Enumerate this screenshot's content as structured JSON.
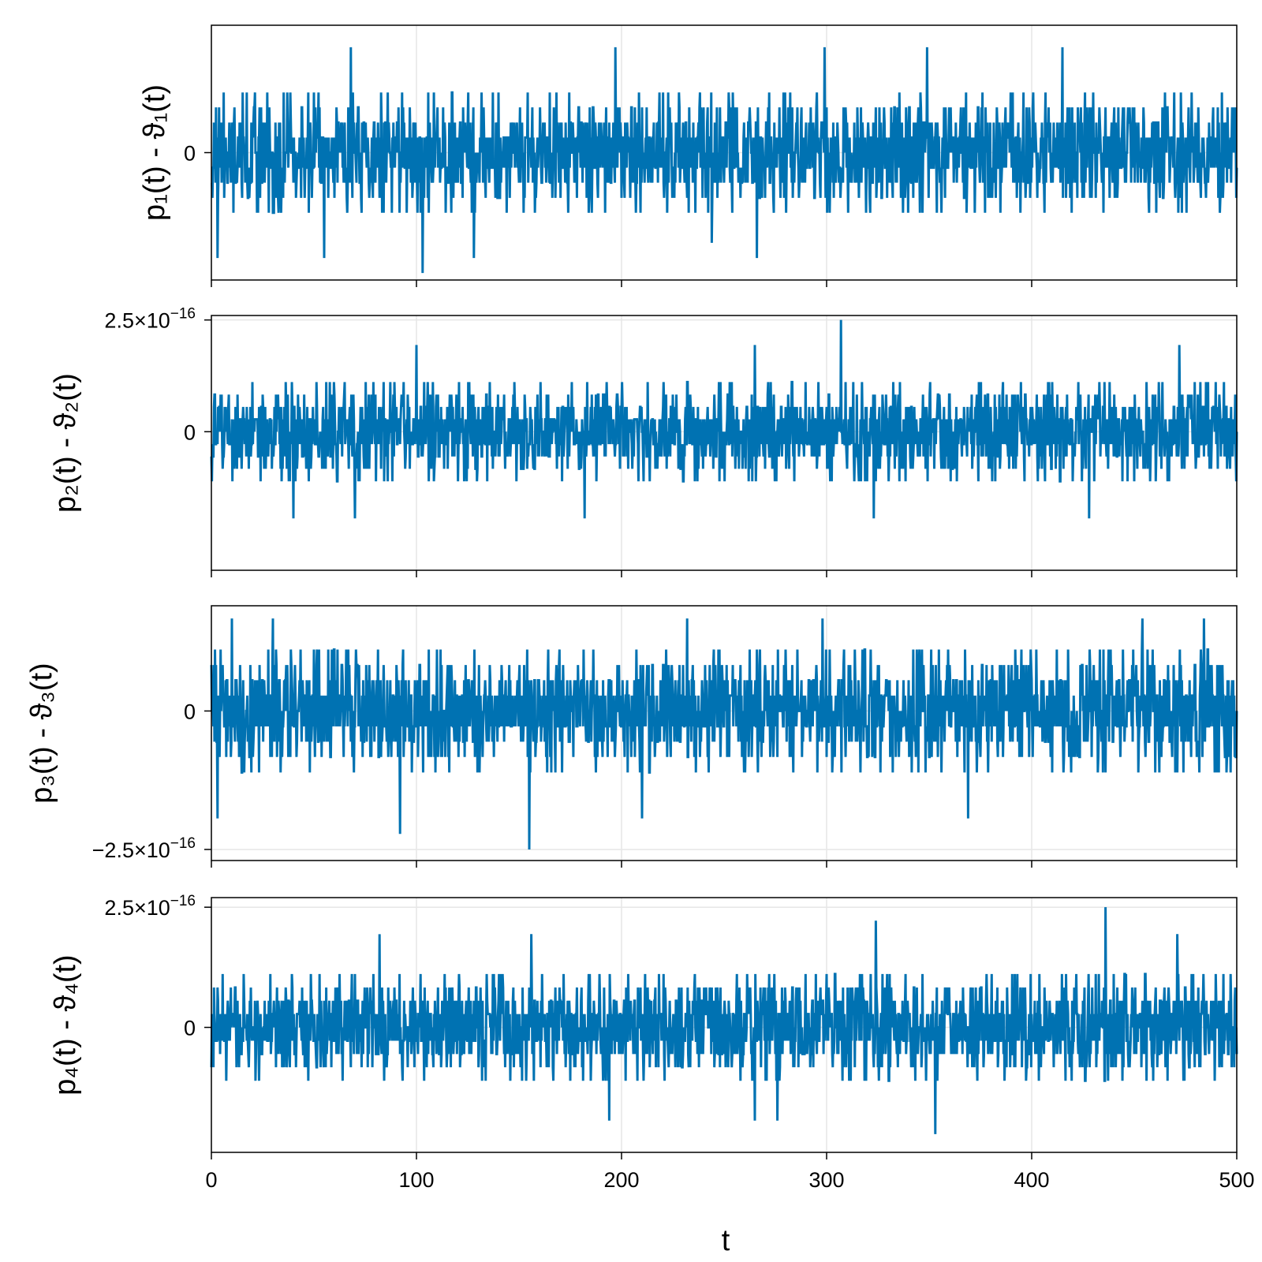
{
  "chart_data": [
    {
      "type": "line",
      "ylabel": "p₁(t) - ϑ₁(t)",
      "xlabel": "",
      "xlim": [
        0,
        500
      ],
      "ylim": [
        -4.7e-16,
        4.7e-16
      ],
      "xticks": [
        0,
        100,
        200,
        300,
        400,
        500
      ],
      "yticks": [
        {
          "value": 0,
          "label": "0"
        }
      ],
      "grid": true,
      "color": "#0072B2",
      "series": [
        {
          "x_range": [
            0,
            500
          ],
          "n_points": 2001,
          "levels": [
            -4.44e-16,
            -3.89e-16,
            -3.33e-16,
            -2.78e-16,
            -2.22e-16,
            -1.67e-16,
            -1.11e-16,
            -5.55e-17,
            0,
            5.55e-17,
            1.11e-16,
            1.67e-16,
            2.22e-16,
            2.78e-16,
            3.33e-16,
            3.89e-16
          ],
          "extremes": [
            {
              "x": 3,
              "y": -3.89e-16
            },
            {
              "x": 55,
              "y": -3.89e-16
            },
            {
              "x": 103,
              "y": -4.44e-16
            },
            {
              "x": 128,
              "y": -3.89e-16
            },
            {
              "x": 266,
              "y": -3.89e-16
            },
            {
              "x": 244,
              "y": -3.33e-16
            },
            {
              "x": 68,
              "y": 3.89e-16
            },
            {
              "x": 197,
              "y": 3.89e-16
            },
            {
              "x": 299,
              "y": 3.89e-16
            },
            {
              "x": 349,
              "y": 3.89e-16
            },
            {
              "x": 415,
              "y": 3.89e-16
            }
          ]
        }
      ]
    },
    {
      "type": "line",
      "ylabel": "p₂(t) - ϑ₂(t)",
      "xlabel": "",
      "xlim": [
        0,
        500
      ],
      "ylim": [
        -3.1e-16,
        2.6e-16
      ],
      "xticks": [
        0,
        100,
        200,
        300,
        400,
        500
      ],
      "yticks": [
        {
          "value": 2.5e-16,
          "label": "2.5×10",
          "exp": "−16"
        },
        {
          "value": 0,
          "label": "0"
        }
      ],
      "grid": true,
      "color": "#0072B2",
      "series": [
        {
          "x_range": [
            0,
            500
          ],
          "n_points": 2001,
          "levels": [
            -1.94e-16,
            -1.67e-16,
            -1.39e-16,
            -1.11e-16,
            -8.3e-17,
            -5.55e-17,
            -2.78e-17,
            0,
            2.78e-17,
            5.55e-17,
            8.3e-17,
            1.11e-16,
            1.39e-16,
            1.67e-16,
            1.94e-16,
            2.22e-16,
            2.5e-16
          ],
          "extremes": [
            {
              "x": 40,
              "y": -1.94e-16
            },
            {
              "x": 70,
              "y": -1.94e-16
            },
            {
              "x": 182,
              "y": -1.94e-16
            },
            {
              "x": 265,
              "y": -1.94e-16
            },
            {
              "x": 323,
              "y": -1.94e-16
            },
            {
              "x": 428,
              "y": -1.94e-16
            },
            {
              "x": 307,
              "y": 2.5e-16
            },
            {
              "x": 100,
              "y": 1.94e-16
            },
            {
              "x": 265,
              "y": 1.94e-16
            },
            {
              "x": 472,
              "y": 1.94e-16
            }
          ]
        }
      ]
    },
    {
      "type": "line",
      "ylabel": "p₃(t) - ϑ₃(t)",
      "xlabel": "",
      "xlim": [
        0,
        500
      ],
      "ylim": [
        -2.7e-16,
        1.9e-16
      ],
      "xticks": [
        0,
        100,
        200,
        300,
        400,
        500
      ],
      "yticks": [
        {
          "value": 0,
          "label": "0"
        },
        {
          "value": -2.5e-16,
          "label": "−2.5×10",
          "exp": "−16"
        }
      ],
      "grid": true,
      "color": "#0072B2",
      "series": [
        {
          "x_range": [
            0,
            500
          ],
          "n_points": 2001,
          "levels": [
            -2.5e-16,
            -2.22e-16,
            -1.94e-16,
            -1.67e-16,
            -1.39e-16,
            -1.11e-16,
            -8.3e-17,
            -5.55e-17,
            -2.78e-17,
            0,
            2.78e-17,
            5.55e-17,
            8.3e-17,
            1.11e-16,
            1.39e-16,
            1.67e-16
          ],
          "extremes": [
            {
              "x": 155,
              "y": -2.5e-16
            },
            {
              "x": 92,
              "y": -2.22e-16
            },
            {
              "x": 3,
              "y": -1.94e-16
            },
            {
              "x": 210,
              "y": -1.94e-16
            },
            {
              "x": 369,
              "y": -1.94e-16
            },
            {
              "x": 10,
              "y": 1.67e-16
            },
            {
              "x": 30,
              "y": 1.67e-16
            },
            {
              "x": 232,
              "y": 1.67e-16
            },
            {
              "x": 298,
              "y": 1.67e-16
            },
            {
              "x": 454,
              "y": 1.67e-16
            },
            {
              "x": 484,
              "y": 1.67e-16
            }
          ]
        }
      ]
    },
    {
      "type": "line",
      "ylabel": "p₄(t) - ϑ₄(t)",
      "xlabel": "t",
      "xlim": [
        0,
        500
      ],
      "ylim": [
        -2.6e-16,
        2.7e-16
      ],
      "xticks": [
        0,
        100,
        200,
        300,
        400,
        500
      ],
      "yticks": [
        {
          "value": 2.5e-16,
          "label": "2.5×10",
          "exp": "−16"
        },
        {
          "value": 0,
          "label": "0"
        }
      ],
      "grid": true,
      "color": "#0072B2",
      "series": [
        {
          "x_range": [
            0,
            500
          ],
          "n_points": 2001,
          "levels": [
            -2.22e-16,
            -1.94e-16,
            -1.67e-16,
            -1.39e-16,
            -1.11e-16,
            -8.3e-17,
            -5.55e-17,
            -2.78e-17,
            0,
            2.78e-17,
            5.55e-17,
            8.3e-17,
            1.11e-16,
            1.39e-16,
            1.67e-16,
            1.94e-16,
            2.22e-16,
            2.5e-16
          ],
          "extremes": [
            {
              "x": 353,
              "y": -2.22e-16
            },
            {
              "x": 194,
              "y": -1.94e-16
            },
            {
              "x": 265,
              "y": -1.94e-16
            },
            {
              "x": 276,
              "y": -1.94e-16
            },
            {
              "x": 436,
              "y": 2.5e-16
            },
            {
              "x": 324,
              "y": 2.22e-16
            },
            {
              "x": 82,
              "y": 1.94e-16
            },
            {
              "x": 156,
              "y": 1.94e-16
            },
            {
              "x": 471,
              "y": 1.94e-16
            }
          ]
        }
      ]
    }
  ]
}
